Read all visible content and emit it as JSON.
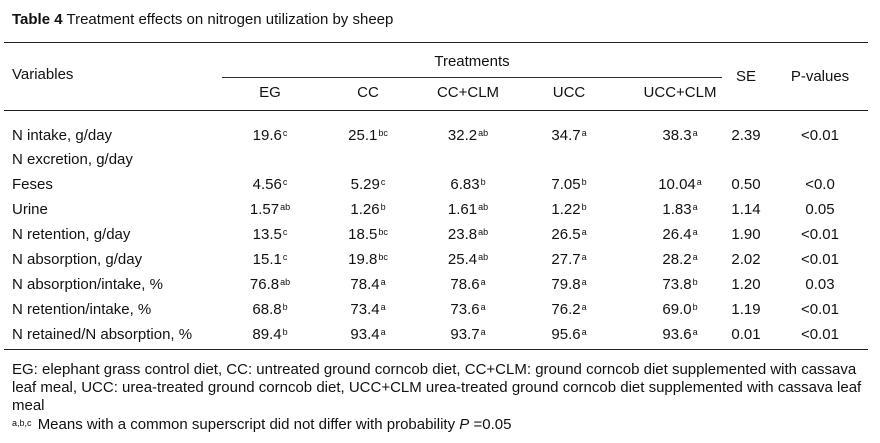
{
  "caption": {
    "label": "Table 4",
    "text": "Treatment effects on nitrogen utilization by sheep"
  },
  "headers": {
    "variables": "Variables",
    "treatments": "Treatments",
    "se": "SE",
    "pvalues": "P-values",
    "treatment_cols": [
      "EG",
      "CC",
      "CC+CLM",
      "UCC",
      "UCC+CLM"
    ]
  },
  "rows": [
    {
      "label": "N intake, g/day",
      "values": [
        [
          "19.6",
          "c"
        ],
        [
          "25.1",
          "bc"
        ],
        [
          "32.2",
          "ab"
        ],
        [
          "34.7",
          "a"
        ],
        [
          "38.3",
          "a"
        ]
      ],
      "se": "2.39",
      "p": "<0.01"
    },
    {
      "label": "N excretion, g/day",
      "values": [],
      "se": "",
      "p": ""
    },
    {
      "label": "Feses",
      "values": [
        [
          "4.56",
          "c"
        ],
        [
          "5.29",
          "c"
        ],
        [
          "6.83",
          "b"
        ],
        [
          "7.05",
          "b"
        ],
        [
          "10.04",
          "a"
        ]
      ],
      "se": "0.50",
      "p": "<0.0"
    },
    {
      "label": "Urine",
      "values": [
        [
          "1.57",
          "ab"
        ],
        [
          "1.26",
          "b"
        ],
        [
          "1.61",
          "ab"
        ],
        [
          "1.22",
          "b"
        ],
        [
          "1.83",
          "a"
        ]
      ],
      "se": "1.14",
      "p": "0.05"
    },
    {
      "label": "N retention, g/day",
      "values": [
        [
          "13.5",
          "c"
        ],
        [
          "18.5",
          "bc"
        ],
        [
          "23.8",
          "ab"
        ],
        [
          "26.5",
          "a"
        ],
        [
          "26.4",
          "a"
        ]
      ],
      "se": "1.90",
      "p": "<0.01"
    },
    {
      "label": "N absorption, g/day",
      "values": [
        [
          "15.1",
          "c"
        ],
        [
          "19.8",
          "bc"
        ],
        [
          "25.4",
          "ab"
        ],
        [
          "27.7",
          "a"
        ],
        [
          "28.2",
          "a"
        ]
      ],
      "se": "2.02",
      "p": "<0.01"
    },
    {
      "label": "N absorption/intake, %",
      "values": [
        [
          "76.8",
          "ab"
        ],
        [
          "78.4",
          "a"
        ],
        [
          "78.6",
          "a"
        ],
        [
          "79.8",
          "a"
        ],
        [
          "73.8",
          "b"
        ]
      ],
      "se": "1.20",
      "p": "0.03"
    },
    {
      "label": "N retention/intake, %",
      "values": [
        [
          "68.8",
          "b"
        ],
        [
          "73.4",
          "a"
        ],
        [
          "73.6",
          "a"
        ],
        [
          "76.2",
          "a"
        ],
        [
          "69.0",
          "b"
        ]
      ],
      "se": "1.19",
      "p": "<0.01"
    },
    {
      "label": "N retained/N absorption, %",
      "values": [
        [
          "89.4",
          "b"
        ],
        [
          "93.4",
          "a"
        ],
        [
          "93.7",
          "a"
        ],
        [
          "95.6",
          "a"
        ],
        [
          "93.6",
          "a"
        ]
      ],
      "se": "0.01",
      "p": "<0.01"
    }
  ],
  "footnotes": {
    "abbrev": "EG: elephant grass control diet, CC: untreated ground corncob diet, CC+CLM: ground corncob diet supplemented with cassava leaf meal, UCC: urea-treated ground corncob diet, UCC+CLM urea-treated ground corncob diet supplemented with cassava leaf meal",
    "sig_sup": "a,b,c",
    "sig_text": "Means with a common superscript did not differ with probability",
    "sig_p": "P",
    "sig_val": "=0.05"
  }
}
